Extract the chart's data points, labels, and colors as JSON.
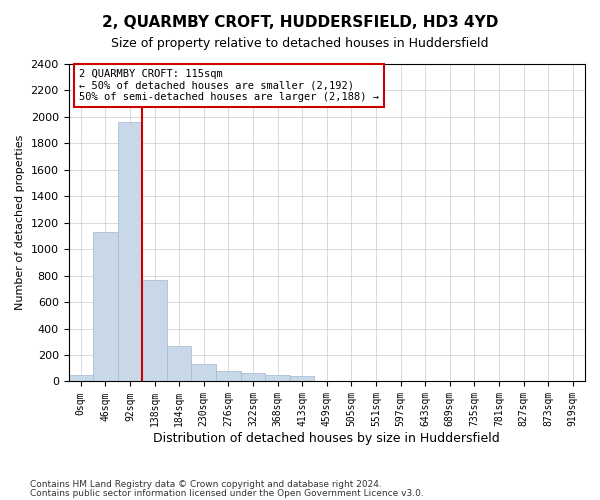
{
  "title": "2, QUARMBY CROFT, HUDDERSFIELD, HD3 4YD",
  "subtitle": "Size of property relative to detached houses in Huddersfield",
  "xlabel": "Distribution of detached houses by size in Huddersfield",
  "ylabel": "Number of detached properties",
  "footnote1": "Contains HM Land Registry data © Crown copyright and database right 2024.",
  "footnote2": "Contains public sector information licensed under the Open Government Licence v3.0.",
  "annotation_title": "2 QUARMBY CROFT: 115sqm",
  "annotation_line1": "← 50% of detached houses are smaller (2,192)",
  "annotation_line2": "50% of semi-detached houses are larger (2,188) →",
  "bar_color": "#c8d8e8",
  "bar_edge_color": "#a0b8d0",
  "vline_color": "#cc0000",
  "vline_x": 2.5,
  "ylim": [
    0,
    2400
  ],
  "yticks": [
    0,
    200,
    400,
    600,
    800,
    1000,
    1200,
    1400,
    1600,
    1800,
    2000,
    2200,
    2400
  ],
  "bins": [
    "0sqm",
    "46sqm",
    "92sqm",
    "138sqm",
    "184sqm",
    "230sqm",
    "276sqm",
    "322sqm",
    "368sqm",
    "413sqm",
    "459sqm",
    "505sqm",
    "551sqm",
    "597sqm",
    "643sqm",
    "689sqm",
    "735sqm",
    "781sqm",
    "827sqm",
    "873sqm",
    "919sqm"
  ],
  "values": [
    50,
    1130,
    1960,
    770,
    270,
    130,
    80,
    65,
    50,
    40,
    0,
    0,
    0,
    0,
    0,
    0,
    0,
    0,
    0,
    0,
    0
  ]
}
